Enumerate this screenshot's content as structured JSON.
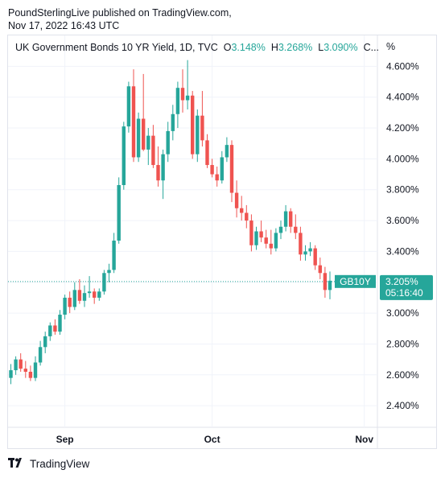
{
  "publisher": {
    "line1": "PoundSterlingLive published on TradingView.com,",
    "line2": "Nov 17, 2022 16:43 UTC"
  },
  "legend": {
    "title": "UK Government Bonds 10 YR Yield, 1D, TVC",
    "o_label": "O",
    "o_value": "3.148%",
    "h_label": "H",
    "h_value": "3.268%",
    "l_label": "L",
    "l_value": "3.090%",
    "more": "C..."
  },
  "scale_unit": "%",
  "price_tag": {
    "symbol": "GB10Y",
    "value": "3.205%",
    "countdown": "05:16:40"
  },
  "footer": {
    "brand": "TradingView",
    "logo_icon": "tradingview-logo-icon"
  },
  "colors": {
    "up": "#26a69a",
    "down": "#ef5350",
    "grid": "#f0f3fa",
    "text": "#131722"
  },
  "chart_data": {
    "type": "candlestick",
    "title": "UK Government Bonds 10 YR Yield, 1D, TVC",
    "ylim": [
      2.26,
      4.8
    ],
    "y_ticks": [
      2.4,
      2.6,
      2.8,
      3.0,
      3.2,
      3.4,
      3.6,
      3.8,
      4.0,
      4.2,
      4.4,
      4.6
    ],
    "y_tick_labels": [
      "2.400%",
      "2.600%",
      "2.800%",
      "3.000%",
      "3.200%",
      "3.400%",
      "3.600%",
      "3.800%",
      "4.000%",
      "4.200%",
      "4.400%",
      "4.600%"
    ],
    "x_labels": [
      {
        "label": "Sep",
        "index": 11
      },
      {
        "label": "Oct",
        "index": 41
      },
      {
        "label": "Nov",
        "index": 72
      }
    ],
    "last_value": 3.205,
    "candles": [
      [
        2.58,
        2.67,
        2.54,
        2.63
      ],
      [
        2.63,
        2.72,
        2.6,
        2.7
      ],
      [
        2.7,
        2.74,
        2.62,
        2.64
      ],
      [
        2.64,
        2.69,
        2.58,
        2.62
      ],
      [
        2.62,
        2.66,
        2.56,
        2.58
      ],
      [
        2.58,
        2.72,
        2.56,
        2.68
      ],
      [
        2.68,
        2.82,
        2.66,
        2.78
      ],
      [
        2.78,
        2.88,
        2.74,
        2.85
      ],
      [
        2.85,
        2.94,
        2.82,
        2.92
      ],
      [
        2.92,
        2.96,
        2.86,
        2.88
      ],
      [
        2.88,
        3.02,
        2.86,
        2.99
      ],
      [
        2.99,
        3.12,
        2.96,
        3.1
      ],
      [
        3.1,
        3.14,
        3.0,
        3.04
      ],
      [
        3.04,
        3.2,
        3.02,
        3.15
      ],
      [
        3.15,
        3.22,
        3.06,
        3.08
      ],
      [
        3.08,
        3.18,
        3.04,
        3.13
      ],
      [
        3.13,
        3.24,
        3.1,
        3.14
      ],
      [
        3.14,
        3.16,
        3.06,
        3.1
      ],
      [
        3.1,
        3.16,
        3.08,
        3.14
      ],
      [
        3.14,
        3.28,
        3.12,
        3.26
      ],
      [
        3.26,
        3.32,
        3.2,
        3.28
      ],
      [
        3.28,
        3.52,
        3.26,
        3.47
      ],
      [
        3.47,
        3.88,
        3.45,
        3.83
      ],
      [
        3.83,
        4.24,
        3.8,
        4.21
      ],
      [
        4.21,
        4.5,
        4.17,
        4.47
      ],
      [
        4.47,
        4.58,
        3.98,
        4.01
      ],
      [
        4.01,
        4.3,
        3.98,
        4.26
      ],
      [
        4.26,
        4.55,
        4.05,
        4.06
      ],
      [
        4.06,
        4.2,
        3.96,
        4.15
      ],
      [
        4.15,
        4.22,
        3.94,
        3.96
      ],
      [
        3.96,
        4.08,
        3.82,
        3.86
      ],
      [
        3.86,
        4.06,
        3.74,
        4.03
      ],
      [
        4.03,
        4.24,
        3.98,
        4.18
      ],
      [
        4.18,
        4.35,
        4.12,
        4.29
      ],
      [
        4.29,
        4.5,
        4.2,
        4.46
      ],
      [
        4.46,
        4.58,
        4.3,
        4.38
      ],
      [
        4.38,
        4.64,
        4.32,
        4.41
      ],
      [
        4.41,
        4.44,
        4.0,
        4.03
      ],
      [
        4.03,
        4.32,
        3.98,
        4.28
      ],
      [
        4.28,
        4.44,
        4.08,
        4.12
      ],
      [
        4.12,
        4.16,
        3.94,
        3.96
      ],
      [
        3.96,
        4.0,
        3.88,
        3.9
      ],
      [
        3.9,
        3.95,
        3.82,
        3.86
      ],
      [
        3.86,
        4.05,
        3.84,
        4.01
      ],
      [
        4.01,
        4.14,
        3.98,
        4.09
      ],
      [
        4.09,
        4.12,
        3.72,
        3.78
      ],
      [
        3.78,
        3.86,
        3.62,
        3.68
      ],
      [
        3.68,
        3.76,
        3.6,
        3.65
      ],
      [
        3.65,
        3.7,
        3.55,
        3.6
      ],
      [
        3.6,
        3.64,
        3.4,
        3.44
      ],
      [
        3.44,
        3.56,
        3.41,
        3.53
      ],
      [
        3.53,
        3.6,
        3.46,
        3.49
      ],
      [
        3.49,
        3.54,
        3.42,
        3.45
      ],
      [
        3.45,
        3.54,
        3.38,
        3.42
      ],
      [
        3.42,
        3.55,
        3.4,
        3.52
      ],
      [
        3.52,
        3.6,
        3.48,
        3.56
      ],
      [
        3.56,
        3.7,
        3.53,
        3.66
      ],
      [
        3.66,
        3.68,
        3.52,
        3.56
      ],
      [
        3.56,
        3.64,
        3.48,
        3.52
      ],
      [
        3.52,
        3.56,
        3.34,
        3.38
      ],
      [
        3.38,
        3.44,
        3.34,
        3.4
      ],
      [
        3.4,
        3.46,
        3.37,
        3.42
      ],
      [
        3.42,
        3.44,
        3.28,
        3.31
      ],
      [
        3.31,
        3.36,
        3.22,
        3.26
      ],
      [
        3.26,
        3.3,
        3.1,
        3.15
      ],
      [
        3.15,
        3.27,
        3.09,
        3.21
      ]
    ]
  }
}
